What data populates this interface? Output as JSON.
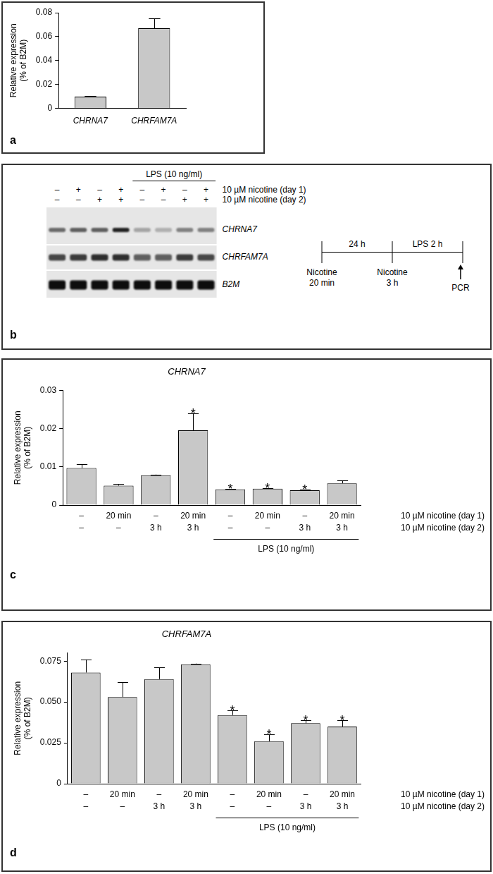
{
  "chart_data": [
    {
      "panel_label": "a",
      "type": "bar",
      "categories": [
        "CHRNA7",
        "CHRFAM7A"
      ],
      "values": [
        0.0098,
        0.067
      ],
      "errors": [
        0.0003,
        0.008
      ],
      "y_label": [
        "Relative expression",
        "(% of B2M)"
      ],
      "ylim": [
        0,
        0.08
      ],
      "yticks": [
        0,
        0.02,
        0.04,
        0.06,
        0.08
      ],
      "color": "#c8c8c8",
      "grid": false
    },
    {
      "panel_label": "c",
      "type": "bar",
      "title": "CHRNA7",
      "categories": [
        [
          "–",
          "–"
        ],
        [
          "20 min",
          "–"
        ],
        [
          "–",
          "3 h"
        ],
        [
          "20 min",
          "3 h"
        ],
        [
          "–",
          "–"
        ],
        [
          "20 min",
          "–"
        ],
        [
          "–",
          "3 h"
        ],
        [
          "20 min",
          "3 h"
        ]
      ],
      "category_rows": [
        "10 µM nicotine (day 1)",
        "10 µM nicotine (day 2)"
      ],
      "groups": [
        null,
        null,
        null,
        null,
        "LPS (10 ng/ml)",
        "LPS (10 ng/ml)",
        "LPS (10 ng/ml)",
        "LPS (10 ng/ml)"
      ],
      "values": [
        0.0097,
        0.0051,
        0.0078,
        0.0196,
        0.0041,
        0.0043,
        0.0039,
        0.0057
      ],
      "errors": [
        0.001,
        0.0004,
        0.0002,
        0.0045,
        0.0001,
        0.0001,
        0.0001,
        0.0007
      ],
      "significance": [
        null,
        null,
        null,
        "*",
        "*",
        "*",
        "*",
        null
      ],
      "y_label": [
        "Relative expression",
        "(% of B2M)"
      ],
      "ylim": [
        0,
        0.03
      ],
      "yticks": [
        0,
        0.01,
        0.02,
        0.03
      ],
      "color": "#c8c8c8",
      "grid": false
    },
    {
      "panel_label": "d",
      "type": "bar",
      "title": "CHRFAM7A",
      "categories": [
        [
          "–",
          "–"
        ],
        [
          "20 min",
          "–"
        ],
        [
          "–",
          "3 h"
        ],
        [
          "20 min",
          "3 h"
        ],
        [
          "–",
          "–"
        ],
        [
          "20 min",
          "–"
        ],
        [
          "–",
          "3 h"
        ],
        [
          "20 min",
          "3 h"
        ]
      ],
      "category_rows": [
        "10 µM nicotine (day 1)",
        "10 µM nicotine (day 2)"
      ],
      "groups": [
        null,
        null,
        null,
        null,
        "LPS (10 ng/ml)",
        "LPS (10 ng/ml)",
        "LPS (10 ng/ml)",
        "LPS (10 ng/ml)"
      ],
      "values": [
        0.068,
        0.053,
        0.064,
        0.073,
        0.042,
        0.026,
        0.037,
        0.035
      ],
      "errors": [
        0.008,
        0.009,
        0.007,
        0.0005,
        0.003,
        0.004,
        0.002,
        0.004
      ],
      "significance": [
        null,
        null,
        null,
        null,
        "*",
        "*",
        "*",
        "*"
      ],
      "y_label": [
        "Relative expression",
        "(% of B2M)"
      ],
      "ylim": [
        0,
        0.08
      ],
      "yticks": [
        0,
        0.025,
        {
          "value": 0.05,
          "label": "0.050"
        },
        0.075
      ],
      "color": "#c8c8c8",
      "grid": false
    }
  ],
  "panel_b": {
    "panel_label": "b",
    "groups": [
      null,
      null,
      null,
      null,
      "LPS (10 ng/ml)",
      "LPS (10 ng/ml)",
      "LPS (10 ng/ml)",
      "LPS (10 ng/ml)"
    ],
    "rows": [
      {
        "label": "10 µM nicotine (day 1)",
        "lanes": [
          "–",
          "+",
          "–",
          "+",
          "–",
          "+",
          "–",
          "+"
        ]
      },
      {
        "label": "10 µM nicotine (day 2)",
        "lanes": [
          "–",
          "–",
          "+",
          "+",
          "–",
          "–",
          "+",
          "+"
        ]
      }
    ],
    "bands": [
      {
        "label": "CHRNA7",
        "intensity": [
          0.55,
          0.6,
          0.6,
          0.85,
          0.3,
          0.25,
          0.45,
          0.45
        ]
      },
      {
        "label": "CHRFAM7A",
        "intensity": [
          0.7,
          0.75,
          0.8,
          0.8,
          0.6,
          0.6,
          0.75,
          0.7
        ]
      },
      {
        "label": "B2M",
        "intensity": [
          0.95,
          0.95,
          0.95,
          0.95,
          0.95,
          0.95,
          0.95,
          0.95
        ]
      }
    ],
    "timeline": {
      "points": [
        [
          "Nicotine",
          "20 min"
        ],
        [
          "Nicotine",
          "3 h"
        ]
      ],
      "intervals": [
        "24 h",
        "LPS 2 h"
      ],
      "end": "PCR"
    }
  }
}
